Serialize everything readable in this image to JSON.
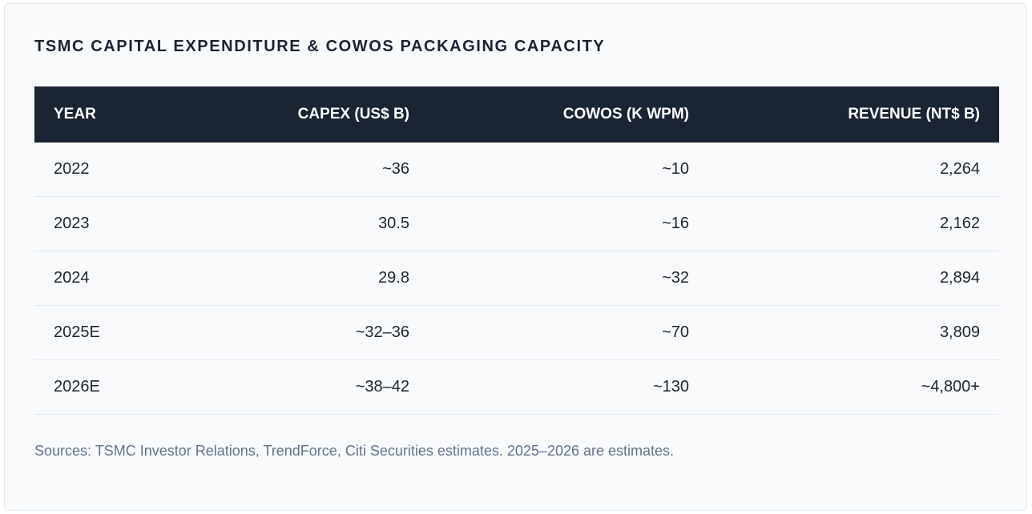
{
  "title": "TSMC CAPITAL EXPENDITURE & COWOS PACKAGING CAPACITY",
  "table": {
    "headers": [
      "YEAR",
      "CAPEX (US$ B)",
      "COWOS (K WPM)",
      "REVENUE (NT$ B)"
    ],
    "rows": [
      [
        "2022",
        "~36",
        "~10",
        "2,264"
      ],
      [
        "2023",
        "30.5",
        "~16",
        "2,162"
      ],
      [
        "2024",
        "29.8",
        "~32",
        "2,894"
      ],
      [
        "2025E",
        "~32–36",
        "~70",
        "3,809"
      ],
      [
        "2026E",
        "~38–42",
        "~130",
        "~4,800+"
      ]
    ]
  },
  "footnote": "Sources: TSMC Investor Relations, TrendForce, Citi Securities estimates. 2025–2026 are estimates."
}
